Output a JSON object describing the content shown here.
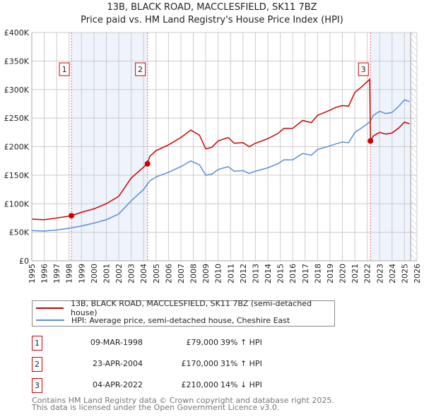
{
  "title": "13B, BLACK ROAD, MACCLESFIELD, SK11 7BZ",
  "subtitle": "Price paid vs. HM Land Registry's House Price Index (HPI)",
  "chart_data": {
    "type": "line",
    "title": "13B, BLACK ROAD, MACCLESFIELD, SK11 7BZ",
    "ylim": [
      0,
      400000
    ],
    "xlim": [
      1995,
      2026
    ],
    "yticks": [
      {
        "v": 0,
        "label": "£0"
      },
      {
        "v": 50000,
        "label": "£50K"
      },
      {
        "v": 100000,
        "label": "£100K"
      },
      {
        "v": 150000,
        "label": "£150K"
      },
      {
        "v": 200000,
        "label": "£200K"
      },
      {
        "v": 250000,
        "label": "£250K"
      },
      {
        "v": 300000,
        "label": "£300K"
      },
      {
        "v": 350000,
        "label": "£350K"
      },
      {
        "v": 400000,
        "label": "£400K"
      }
    ],
    "xticks": [
      "1995",
      "1996",
      "1997",
      "1998",
      "1999",
      "2000",
      "2001",
      "2002",
      "2003",
      "2004",
      "2005",
      "2006",
      "2007",
      "2008",
      "2009",
      "2010",
      "2011",
      "2012",
      "2013",
      "2014",
      "2015",
      "2016",
      "2017",
      "2018",
      "2019",
      "2020",
      "2021",
      "2022",
      "2023",
      "2024",
      "2025",
      "2026"
    ],
    "series": [
      {
        "name": "13B, BLACK ROAD, MACCLESFIELD, SK11 7BZ (semi-detached house)",
        "color": "#cc0000",
        "x": [
          1995,
          1996,
          1997,
          1998.19,
          1999,
          2000,
          2001,
          2002,
          2003,
          2004.31,
          2004.5,
          2005,
          2006,
          2007,
          2007.8,
          2008.5,
          2009,
          2009.5,
          2010,
          2010.8,
          2011.3,
          2012,
          2012.5,
          2013,
          2014,
          2014.8,
          2015.3,
          2016,
          2016.8,
          2017.5,
          2018,
          2018.8,
          2019.5,
          2020,
          2020.5,
          2021,
          2021.5,
          2022.2,
          2022.26,
          2022.5,
          2023,
          2023.5,
          2024,
          2024.5,
          2025,
          2025.4
        ],
        "y": [
          73000,
          72000,
          75000,
          79000,
          85000,
          91000,
          100000,
          113000,
          145000,
          170000,
          183000,
          193000,
          203000,
          216000,
          229000,
          220000,
          196000,
          199000,
          210000,
          216000,
          206000,
          207000,
          200000,
          206000,
          214000,
          223000,
          232000,
          232000,
          246000,
          242000,
          255000,
          262000,
          269000,
          272000,
          271000,
          295000,
          304000,
          318000,
          210000,
          219000,
          225000,
          222000,
          224000,
          232000,
          243000,
          240000
        ]
      },
      {
        "name": "HPI: Average price, semi-detached house, Cheshire East",
        "color": "#5b8fd4",
        "x": [
          1995,
          1996,
          1997,
          1998,
          1999,
          2000,
          2001,
          2002,
          2003,
          2004,
          2004.5,
          2005,
          2006,
          2007,
          2007.8,
          2008.5,
          2009,
          2009.5,
          2010,
          2010.8,
          2011.3,
          2012,
          2012.5,
          2013,
          2014,
          2014.8,
          2015.3,
          2016,
          2016.8,
          2017.5,
          2018,
          2018.8,
          2019.5,
          2020,
          2020.5,
          2021,
          2021.5,
          2022.2,
          2022.5,
          2023,
          2023.5,
          2024,
          2024.5,
          2025,
          2025.4
        ],
        "y": [
          53000,
          52000,
          54000,
          57000,
          61000,
          66000,
          72000,
          82000,
          105000,
          125000,
          140000,
          147000,
          155000,
          165000,
          175000,
          168000,
          150000,
          152000,
          160000,
          165000,
          157000,
          158000,
          153000,
          157000,
          163000,
          170000,
          177000,
          177000,
          188000,
          185000,
          195000,
          200000,
          205000,
          208000,
          207000,
          225000,
          232000,
          243000,
          255000,
          262000,
          258000,
          260000,
          270000,
          282000,
          279000
        ]
      }
    ],
    "sales": [
      {
        "label": "1",
        "x": 1998.19,
        "y": 79000,
        "date": "09-MAR-1998",
        "price": "£79,000",
        "hpi": "39% ↑ HPI"
      },
      {
        "label": "2",
        "x": 2004.31,
        "y": 170000,
        "date": "23-APR-2004",
        "price": "£170,000",
        "hpi": "31% ↑ HPI"
      },
      {
        "label": "3",
        "x": 2022.26,
        "y": 210000,
        "date": "04-APR-2022",
        "price": "£210,000",
        "hpi": "14% ↓ HPI"
      }
    ],
    "forecast_from": 2025.5,
    "legend_placement": "bottom"
  },
  "legend": {
    "property": "13B, BLACK ROAD, MACCLESFIELD, SK11 7BZ (semi-detached house)",
    "hpi": "HPI: Average price, semi-detached house, Cheshire East"
  },
  "footer": {
    "line1": "Contains HM Land Registry data © Crown copyright and database right 2025.",
    "line2": "This data is licensed under the Open Government Licence v3.0."
  }
}
